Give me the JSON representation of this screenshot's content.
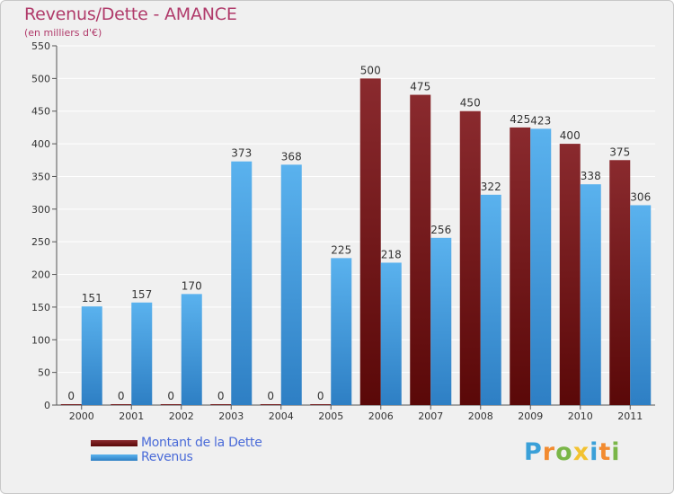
{
  "title": "Revenus/Dette - AMANCE",
  "subtitle": "(en milliers d'€)",
  "colors": {
    "dette": "#7a1a1f",
    "revenus": "#4aa3e3",
    "title": "#b03a6a",
    "legend_text": "#4a6bd8"
  },
  "legend": {
    "placement": "bottom-left",
    "items": [
      {
        "label": "Montant de la Dette",
        "color": "#7a1a1f"
      },
      {
        "label": "Revenus",
        "color": "#4aa3e3"
      }
    ]
  },
  "logo": {
    "text": "Proxiti",
    "letters": [
      {
        "ch": "P",
        "color": "#3aa0d8"
      },
      {
        "ch": "r",
        "color": "#f28b30"
      },
      {
        "ch": "o",
        "color": "#7ab648"
      },
      {
        "ch": "x",
        "color": "#f2c230"
      },
      {
        "ch": "i",
        "color": "#3aa0d8"
      },
      {
        "ch": "t",
        "color": "#f28b30"
      },
      {
        "ch": "i",
        "color": "#7ab648"
      }
    ]
  },
  "chart_data": {
    "type": "bar",
    "categories": [
      "2000",
      "2001",
      "2002",
      "2003",
      "2004",
      "2005",
      "2006",
      "2007",
      "2008",
      "2009",
      "2010",
      "2011"
    ],
    "series": [
      {
        "name": "Montant de la Dette",
        "values": [
          0,
          0,
          0,
          0,
          0,
          0,
          500,
          475,
          450,
          425,
          400,
          375
        ]
      },
      {
        "name": "Revenus",
        "values": [
          151,
          157,
          170,
          373,
          368,
          225,
          218,
          256,
          322,
          423,
          338,
          306
        ]
      }
    ],
    "ylim": [
      0,
      550
    ],
    "yticks": [
      0,
      50,
      100,
      150,
      200,
      250,
      300,
      350,
      400,
      450,
      500,
      550
    ],
    "grid": true,
    "data_labels": true
  }
}
